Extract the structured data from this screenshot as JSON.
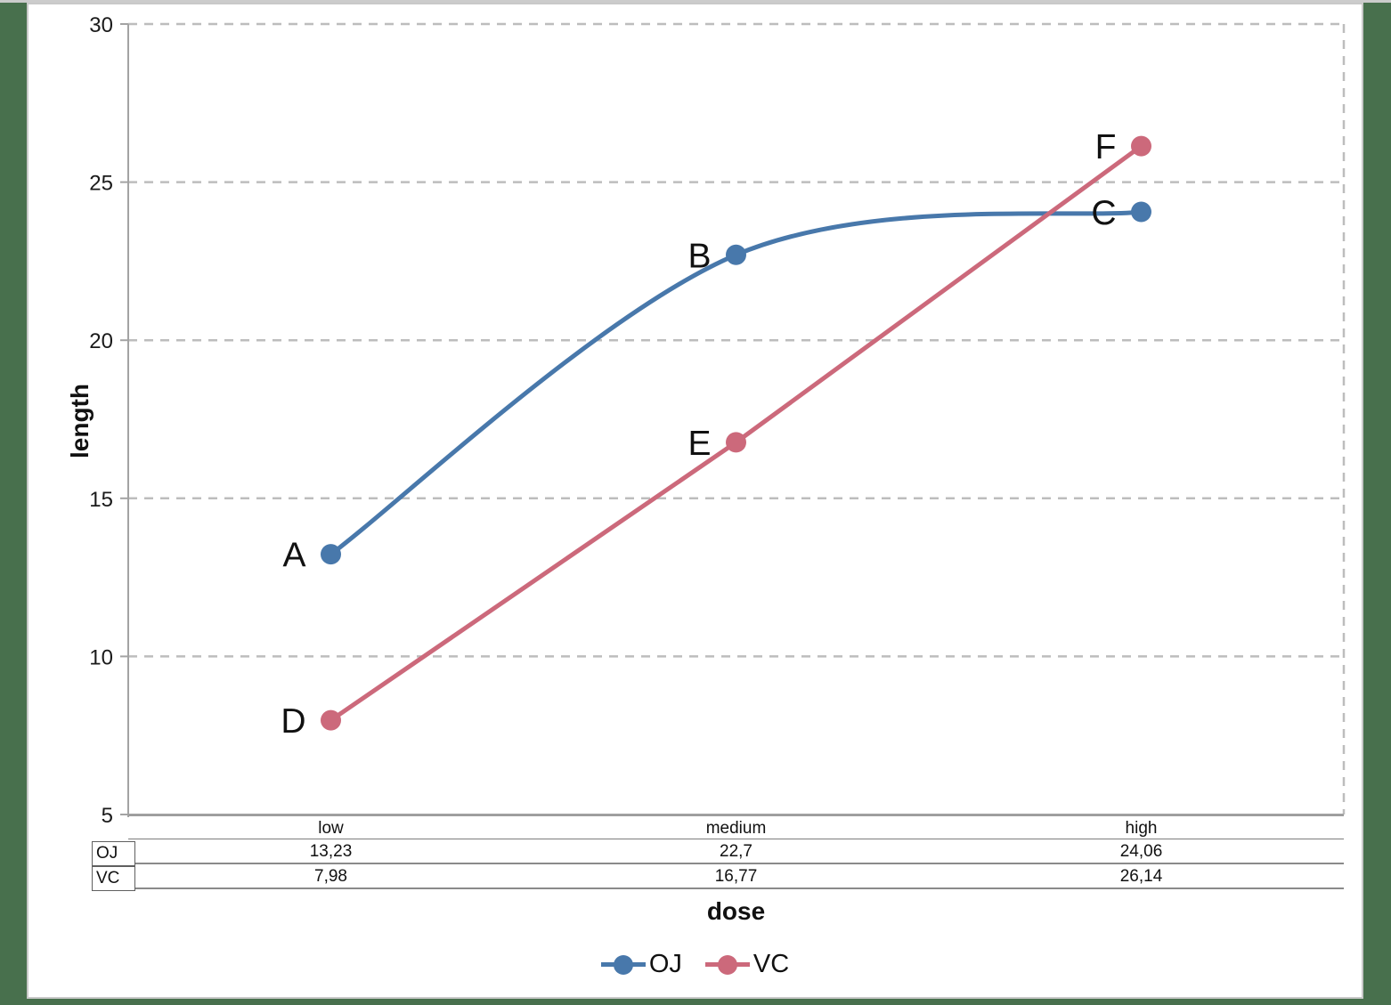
{
  "chart_data": {
    "type": "line",
    "title": "",
    "xlabel": "dose",
    "ylabel": "length",
    "categories": [
      "low",
      "medium",
      "high"
    ],
    "series": [
      {
        "name": "OJ",
        "color": "#4878ab",
        "values": [
          13.23,
          22.7,
          24.06
        ],
        "point_labels": [
          "A",
          "B",
          "C"
        ],
        "smooth": true
      },
      {
        "name": "VC",
        "color": "#cc697b",
        "values": [
          7.98,
          16.77,
          26.14
        ],
        "point_labels": [
          "D",
          "E",
          "F"
        ],
        "smooth": false
      }
    ],
    "ylim": [
      5,
      30
    ],
    "yticks": [
      30,
      25,
      20,
      15,
      10,
      5
    ],
    "grid": "horizontal-dashed",
    "legend_position": "bottom"
  },
  "axis": {
    "x_label": "dose",
    "y_label": "length"
  },
  "table": {
    "row_headers": [
      "OJ",
      "VC"
    ],
    "column_headers": [
      "low",
      "medium",
      "high"
    ],
    "rows": [
      [
        "13,23",
        "22,7",
        "24,06"
      ],
      [
        "7,98",
        "16,77",
        "26,14"
      ]
    ]
  },
  "legend": {
    "items": [
      {
        "label": "OJ",
        "color": "#4878ab"
      },
      {
        "label": "VC",
        "color": "#cc697b"
      }
    ]
  }
}
